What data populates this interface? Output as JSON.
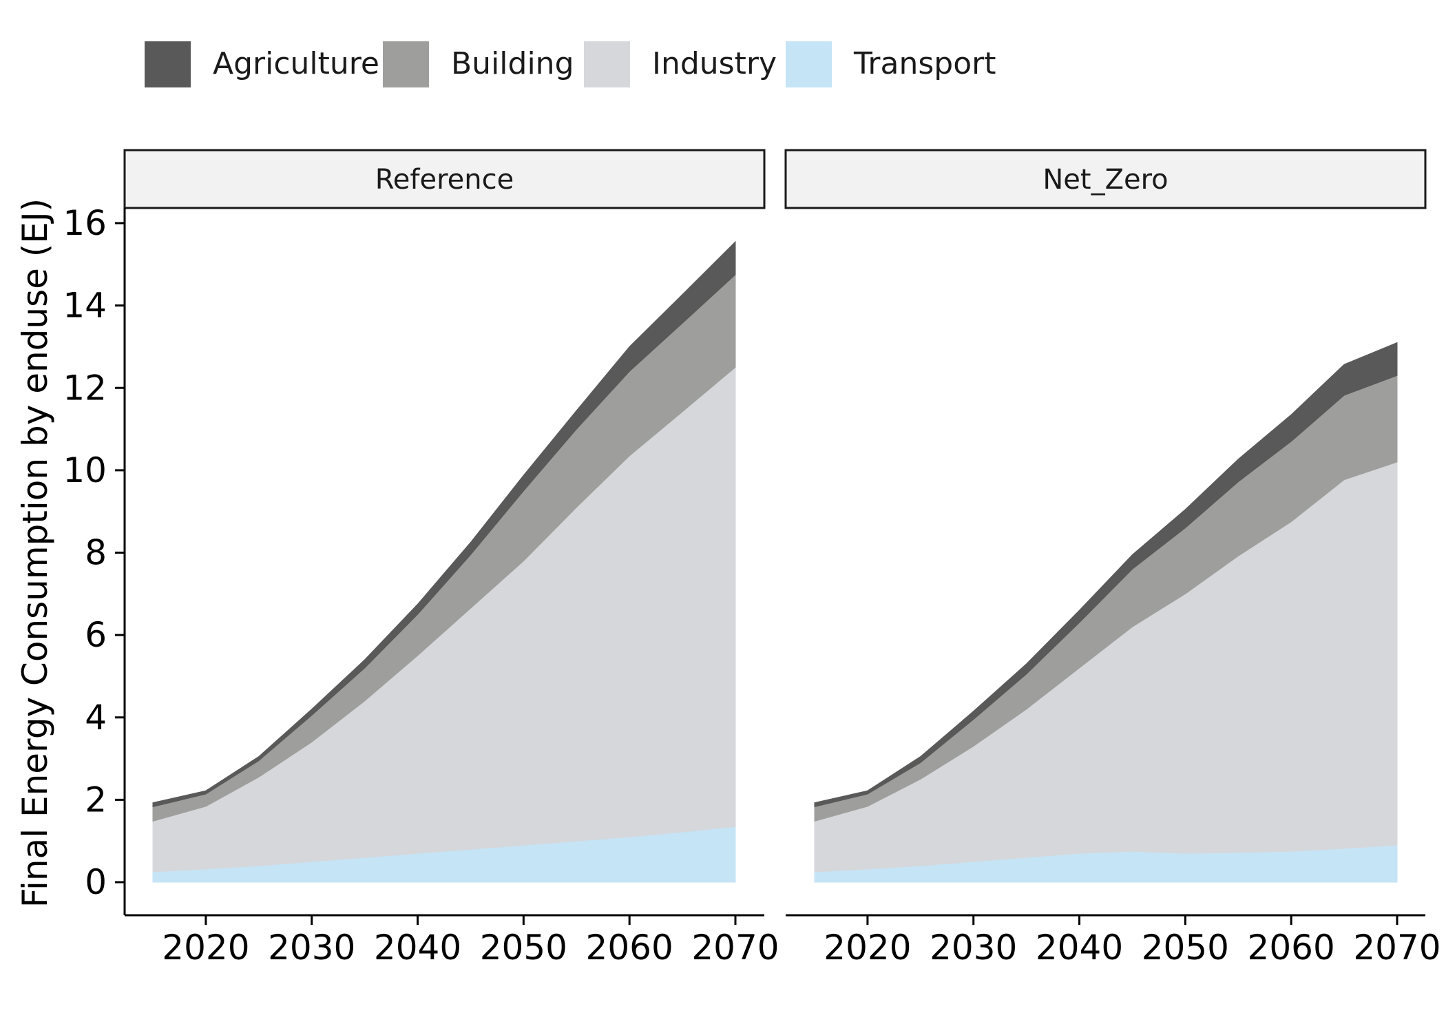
{
  "chart_data": {
    "type": "area",
    "stacked": true,
    "ylabel": "Final Energy Consumption by enduse (EJ)",
    "xlabel": "",
    "x": [
      2015,
      2020,
      2025,
      2030,
      2035,
      2040,
      2045,
      2050,
      2055,
      2060,
      2065,
      2070
    ],
    "xticks": [
      2020,
      2030,
      2040,
      2050,
      2060,
      2070
    ],
    "xlim": [
      2015,
      2070
    ],
    "ylim": [
      0,
      16
    ],
    "yticks": [
      0,
      2,
      4,
      6,
      8,
      10,
      12,
      14,
      16
    ],
    "grid": false,
    "legend_position": "top",
    "legend": [
      {
        "name": "Agriculture",
        "color": "#595959"
      },
      {
        "name": "Building",
        "color": "#9e9e9c"
      },
      {
        "name": "Industry",
        "color": "#d6d7db"
      },
      {
        "name": "Transport",
        "color": "#c5e4f5"
      }
    ],
    "facets": [
      {
        "label": "Reference",
        "series": [
          {
            "name": "Transport",
            "values": [
              0.25,
              0.32,
              0.4,
              0.5,
              0.6,
              0.7,
              0.8,
              0.9,
              1.0,
              1.1,
              1.22,
              1.35
            ]
          },
          {
            "name": "Industry",
            "values": [
              1.23,
              1.52,
              2.15,
              2.9,
              3.8,
              4.8,
              5.85,
              6.9,
              8.1,
              9.25,
              10.2,
              11.15
            ]
          },
          {
            "name": "Building",
            "values": [
              0.35,
              0.3,
              0.4,
              0.65,
              0.8,
              1.0,
              1.3,
              1.7,
              1.9,
              2.05,
              2.15,
              2.25
            ]
          },
          {
            "name": "Agriculture",
            "values": [
              0.1,
              0.08,
              0.1,
              0.15,
              0.2,
              0.25,
              0.3,
              0.38,
              0.45,
              0.6,
              0.7,
              0.8
            ]
          }
        ]
      },
      {
        "label": "Net_Zero",
        "series": [
          {
            "name": "Transport",
            "values": [
              0.25,
              0.32,
              0.4,
              0.5,
              0.6,
              0.7,
              0.75,
              0.7,
              0.72,
              0.75,
              0.82,
              0.9
            ]
          },
          {
            "name": "Industry",
            "values": [
              1.23,
              1.52,
              2.1,
              2.8,
              3.6,
              4.5,
              5.45,
              6.3,
              7.2,
              8.0,
              8.95,
              9.3
            ]
          },
          {
            "name": "Building",
            "values": [
              0.35,
              0.3,
              0.4,
              0.65,
              0.85,
              1.1,
              1.4,
              1.6,
              1.8,
              1.95,
              2.05,
              2.1
            ]
          },
          {
            "name": "Agriculture",
            "values": [
              0.1,
              0.08,
              0.15,
              0.2,
              0.25,
              0.3,
              0.35,
              0.45,
              0.55,
              0.65,
              0.75,
              0.8
            ]
          }
        ]
      }
    ]
  }
}
